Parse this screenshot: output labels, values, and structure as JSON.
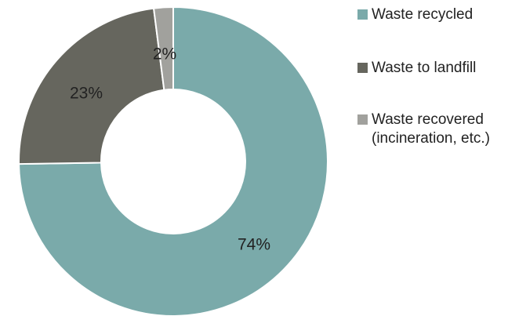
{
  "chart_data": {
    "type": "donut",
    "title": "",
    "xlabel": "",
    "ylabel": "",
    "slices": [
      {
        "name": "Waste recycled",
        "value": 74,
        "label": "74%",
        "color": "#7aaaaa"
      },
      {
        "name": "Waste to landfill",
        "value": 23,
        "label": "23%",
        "color": "#66665e"
      },
      {
        "name": "Waste recovered (incineration, etc.)",
        "value": 2,
        "label": "2%",
        "color": "#a1a19d"
      }
    ],
    "legend": {
      "placement": "right",
      "items": [
        {
          "label_lines": [
            "Waste recycled"
          ],
          "color": "#7aaaaa"
        },
        {
          "label_lines": [
            "Waste to landfill"
          ],
          "color": "#66665e"
        },
        {
          "label_lines": [
            "Waste recovered",
            "(incineration, etc.)"
          ],
          "color": "#a1a19d"
        }
      ]
    }
  }
}
